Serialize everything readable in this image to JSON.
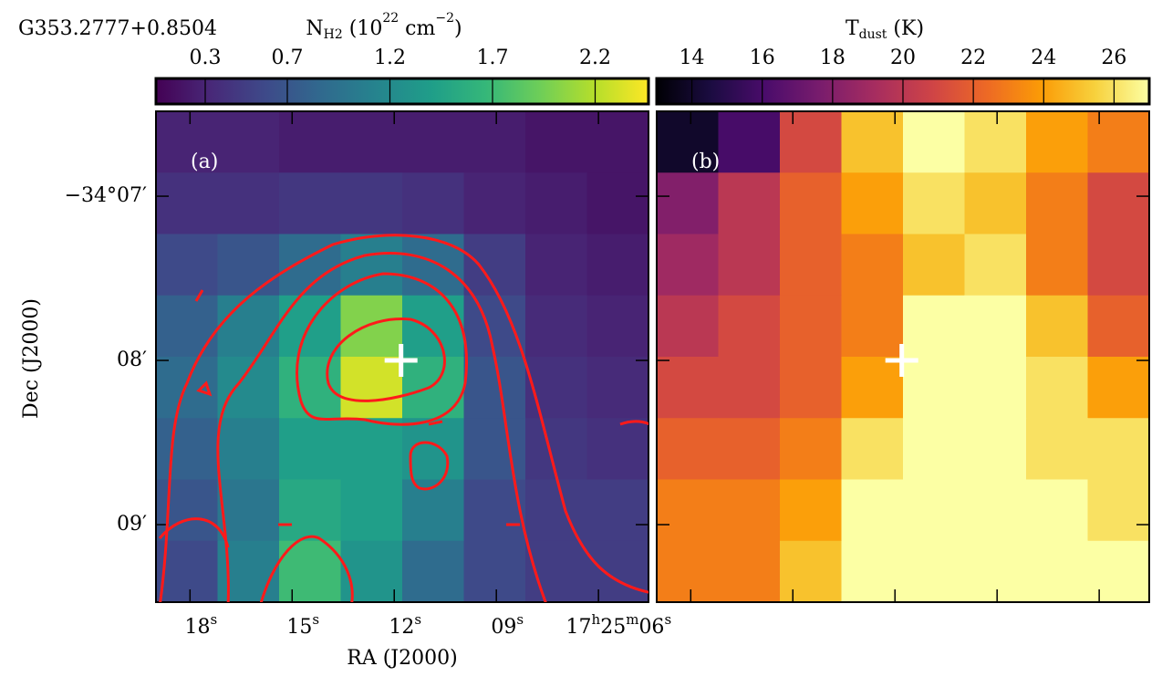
{
  "title": "G353.2777+0.8504",
  "xlabel": "RA (J2000)",
  "ylabel": "Dec (J2000)",
  "xlim": [
    19.0,
    4.53
  ],
  "xticks": [
    {
      "value": 18,
      "label": "18s"
    },
    {
      "value": 15,
      "label": "15s"
    },
    {
      "value": 12,
      "label": "12s"
    },
    {
      "value": 9,
      "label": "09s"
    },
    {
      "value": 6,
      "label": "17h25m06s"
    }
  ],
  "ylim": [
    6.483,
    9.472
  ],
  "yticks": [
    {
      "value": 7,
      "label": "−34°07′"
    },
    {
      "value": 8,
      "label": "08′"
    },
    {
      "value": 9,
      "label": "09′"
    }
  ],
  "cross": {
    "ra": 11.8,
    "dec": 8.0
  },
  "panels": [
    {
      "label": "(a)",
      "cmap": "viridis",
      "cbar_label": {
        "base": "N",
        "sub": "H2",
        "rest": " (10",
        "sup": "22",
        "rest2": " cm",
        "sup2": "−2",
        "end": ")"
      },
      "clim": [
        0.06,
        2.46
      ],
      "cticks": [
        0.3,
        0.7,
        1.2,
        1.7,
        2.2
      ],
      "image": [
        [
          0.3,
          0.3,
          0.25,
          0.25,
          0.25,
          0.25,
          0.2,
          0.2
        ],
        [
          0.4,
          0.4,
          0.45,
          0.45,
          0.4,
          0.3,
          0.25,
          0.2
        ],
        [
          0.6,
          0.7,
          0.9,
          1.1,
          0.9,
          0.5,
          0.3,
          0.25
        ],
        [
          0.8,
          1.1,
          1.4,
          2.0,
          1.4,
          0.6,
          0.35,
          0.3
        ],
        [
          0.9,
          1.2,
          1.6,
          2.3,
          1.6,
          0.7,
          0.4,
          0.35
        ],
        [
          0.8,
          1.1,
          1.4,
          1.4,
          1.3,
          0.7,
          0.45,
          0.4
        ],
        [
          0.7,
          1.0,
          1.5,
          1.4,
          1.1,
          0.6,
          0.5,
          0.5
        ],
        [
          0.6,
          1.1,
          1.7,
          1.3,
          0.9,
          0.6,
          0.5,
          0.5
        ]
      ]
    },
    {
      "label": "(b)",
      "cmap": "inferno",
      "cbar_label": {
        "base": "T",
        "sub": "dust",
        "rest": " (K)"
      },
      "clim": [
        13,
        27
      ],
      "cticks": [
        14,
        16,
        18,
        20,
        22,
        24,
        26
      ],
      "image": [
        [
          14,
          16,
          21,
          25,
          27,
          26,
          24,
          23
        ],
        [
          18,
          20,
          22,
          24,
          26,
          25,
          23,
          21
        ],
        [
          19,
          20,
          22,
          23,
          25,
          26,
          23,
          21
        ],
        [
          20,
          21,
          22,
          23,
          27,
          27,
          25,
          22
        ],
        [
          21,
          21,
          22,
          24,
          27,
          27,
          26,
          24
        ],
        [
          22,
          22,
          23,
          26,
          27,
          27,
          26,
          26
        ],
        [
          23,
          23,
          24,
          27,
          27,
          27,
          27,
          26
        ],
        [
          23,
          23,
          25,
          27,
          27,
          27,
          27,
          27
        ]
      ]
    }
  ]
}
